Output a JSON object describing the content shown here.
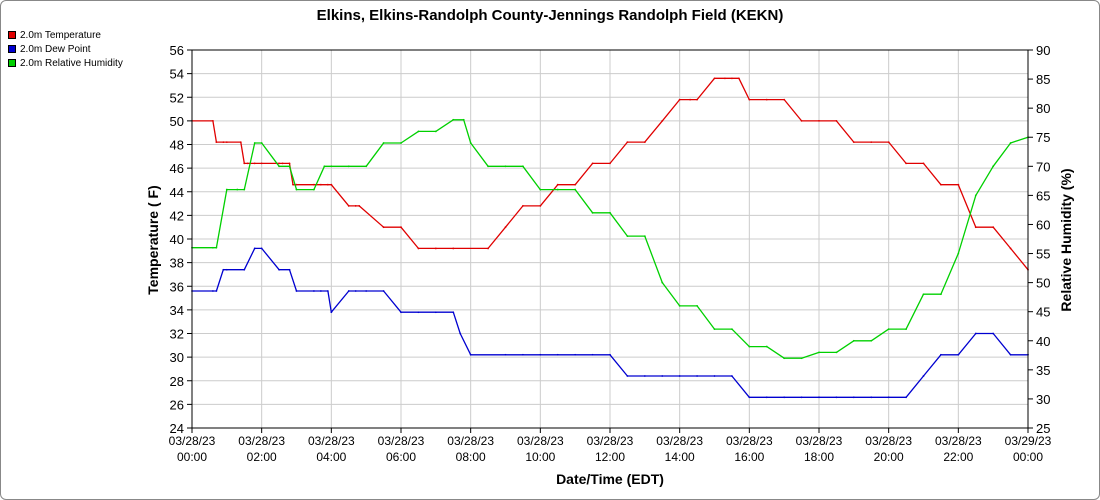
{
  "chart_data": {
    "type": "line",
    "title": "Elkins, Elkins-Randolph County-Jennings Randolph Field (KEKN)",
    "xlabel": "Date/Time (EDT)",
    "ylabel": "Temperature ( F)",
    "y2label": "Relative Humidity (%)",
    "ylim": [
      24,
      56
    ],
    "y2lim": [
      25,
      90
    ],
    "grid": true,
    "legend_position": "top-left",
    "x_ticks": [
      {
        "date": "03/28/23",
        "time": "00:00"
      },
      {
        "date": "03/28/23",
        "time": "02:00"
      },
      {
        "date": "03/28/23",
        "time": "04:00"
      },
      {
        "date": "03/28/23",
        "time": "06:00"
      },
      {
        "date": "03/28/23",
        "time": "08:00"
      },
      {
        "date": "03/28/23",
        "time": "10:00"
      },
      {
        "date": "03/28/23",
        "time": "12:00"
      },
      {
        "date": "03/28/23",
        "time": "14:00"
      },
      {
        "date": "03/28/23",
        "time": "16:00"
      },
      {
        "date": "03/28/23",
        "time": "18:00"
      },
      {
        "date": "03/28/23",
        "time": "20:00"
      },
      {
        "date": "03/28/23",
        "time": "22:00"
      },
      {
        "date": "03/29/23",
        "time": "00:00"
      }
    ],
    "y_ticks": [
      24,
      26,
      28,
      30,
      32,
      34,
      36,
      38,
      40,
      42,
      44,
      46,
      48,
      50,
      52,
      54,
      56
    ],
    "y2_ticks": [
      25,
      30,
      35,
      40,
      45,
      50,
      55,
      60,
      65,
      70,
      75,
      80,
      85,
      90
    ],
    "series": [
      {
        "name": "2.0m Temperature",
        "color": "#e00000",
        "axis": "left",
        "x": [
          0,
          0.6,
          0.7,
          0.9,
          1.0,
          1.4,
          1.5,
          1.6,
          1.8,
          2.0,
          2.5,
          2.6,
          2.8,
          2.9,
          3.0,
          3.5,
          3.7,
          3.9,
          4.0,
          4.5,
          4.7,
          4.8,
          5.5,
          6.0,
          6.5,
          7.0,
          7.5,
          8.5,
          9.0,
          9.5,
          10.0,
          10.5,
          11.0,
          11.5,
          12.0,
          12.5,
          13.0,
          13.5,
          14.0,
          14.3,
          14.5,
          15.0,
          15.3,
          15.5,
          15.7,
          16.0,
          16.5,
          17.0,
          17.5,
          18.0,
          18.5,
          19.0,
          19.5,
          20.0,
          20.5,
          21.0,
          21.5,
          22.0,
          22.5,
          23.0,
          23.5,
          24.0
        ],
        "values": [
          50,
          50,
          48.2,
          48.2,
          48.2,
          48.2,
          46.4,
          46.4,
          46.4,
          46.4,
          46.4,
          46.4,
          46.4,
          44.6,
          44.6,
          44.6,
          44.6,
          44.6,
          44.6,
          42.8,
          42.8,
          42.8,
          41,
          41,
          39.2,
          39.2,
          39.2,
          39.2,
          41,
          42.8,
          42.8,
          44.6,
          44.6,
          46.4,
          46.4,
          48.2,
          48.2,
          50,
          51.8,
          51.8,
          51.8,
          53.6,
          53.6,
          53.6,
          53.6,
          51.8,
          51.8,
          51.8,
          50,
          50,
          50,
          48.2,
          48.2,
          48.2,
          46.4,
          46.4,
          44.6,
          44.6,
          41,
          41,
          39.2,
          37.4
        ]
      },
      {
        "name": "2.0m Dew Point",
        "color": "#0000d0",
        "axis": "left",
        "x": [
          0,
          0.6,
          0.7,
          0.9,
          1.0,
          1.5,
          1.8,
          2.0,
          2.5,
          2.8,
          3.0,
          3.5,
          3.7,
          3.9,
          4.0,
          4.5,
          4.7,
          5.0,
          5.5,
          6.0,
          6.5,
          7.0,
          7.5,
          7.7,
          8.0,
          9.0,
          9.5,
          10.0,
          10.5,
          11.0,
          11.5,
          12.0,
          12.5,
          13.0,
          13.5,
          14.0,
          14.5,
          15.0,
          15.5,
          16.0,
          16.5,
          17.0,
          17.5,
          18.0,
          18.5,
          19.0,
          19.5,
          20.0,
          20.5,
          21.0,
          21.5,
          22.0,
          22.5,
          23.0,
          23.5,
          24.0
        ],
        "values": [
          35.6,
          35.6,
          35.6,
          37.4,
          37.4,
          37.4,
          39.2,
          39.2,
          37.4,
          37.4,
          35.6,
          35.6,
          35.6,
          35.6,
          33.8,
          35.6,
          35.6,
          35.6,
          35.6,
          33.8,
          33.8,
          33.8,
          33.8,
          32,
          30.2,
          30.2,
          30.2,
          30.2,
          30.2,
          30.2,
          30.2,
          30.2,
          28.4,
          28.4,
          28.4,
          28.4,
          28.4,
          28.4,
          28.4,
          26.6,
          26.6,
          26.6,
          26.6,
          26.6,
          26.6,
          26.6,
          26.6,
          26.6,
          26.6,
          28.4,
          30.2,
          30.2,
          32,
          32,
          30.2,
          30.2
        ]
      },
      {
        "name": "2.0m Relative Humidity",
        "color": "#00d000",
        "axis": "right",
        "x": [
          0,
          0.6,
          0.7,
          1.0,
          1.3,
          1.5,
          1.8,
          2.0,
          2.5,
          2.8,
          3.0,
          3.5,
          3.8,
          4.0,
          4.5,
          5.0,
          5.5,
          6.0,
          6.5,
          7.0,
          7.5,
          7.8,
          8.0,
          8.5,
          9.0,
          9.5,
          10.0,
          10.5,
          11.0,
          11.5,
          12.0,
          12.5,
          13.0,
          13.5,
          14.0,
          14.5,
          15.0,
          15.5,
          16.0,
          16.5,
          17.0,
          17.5,
          18.0,
          18.5,
          19.0,
          19.5,
          20.0,
          20.5,
          21.0,
          21.5,
          22.0,
          22.5,
          23.0,
          23.5,
          24.0
        ],
        "values": [
          56,
          56,
          56,
          66,
          66,
          66,
          74,
          74,
          70,
          70,
          66,
          66,
          70,
          70,
          70,
          70,
          74,
          74,
          76,
          76,
          78,
          78,
          74,
          70,
          70,
          70,
          66,
          66,
          66,
          62,
          62,
          58,
          58,
          50,
          46,
          46,
          42,
          42,
          39,
          39,
          37,
          37,
          38,
          38,
          40,
          40,
          42,
          42,
          48,
          48,
          55,
          65,
          70,
          74,
          75
        ]
      }
    ]
  }
}
